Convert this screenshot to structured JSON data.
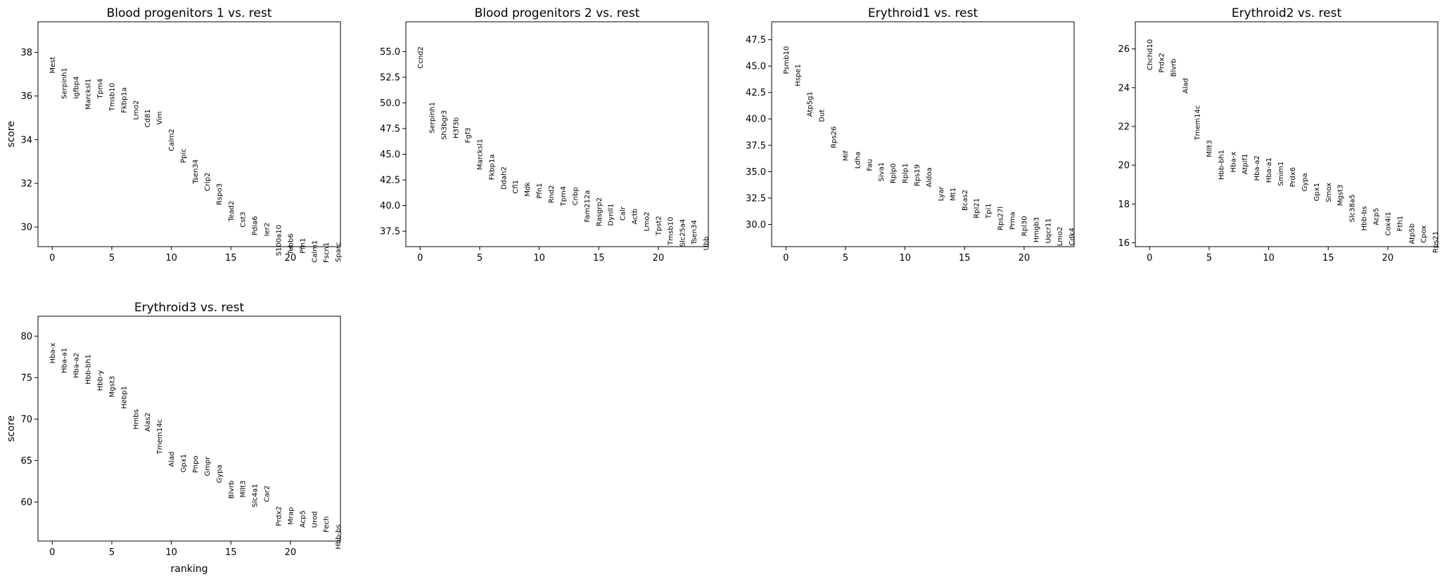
{
  "figure": {
    "xlabel": "ranking",
    "ylabel": "score"
  },
  "chart_data": [
    {
      "type": "scatter",
      "title": "Blood progenitors 1 vs. rest",
      "xlabel": "",
      "ylabel": "score",
      "xlim": [
        -1.2,
        24.2
      ],
      "ylim": [
        29.1,
        39.4
      ],
      "xticks": [
        0,
        5,
        10,
        15,
        20
      ],
      "yticks": [
        30,
        32,
        34,
        36,
        38
      ],
      "ytick_labels": [
        "30",
        "32",
        "34",
        "36",
        "38"
      ],
      "genes": [
        "Mest",
        "Serpinh1",
        "Igfbp4",
        "Marcksl1",
        "Tpm4",
        "Tmsb10",
        "Fkbp1a",
        "Lmo2",
        "Cd81",
        "Vim",
        "Calm2",
        "Ppic",
        "Tsen34",
        "Crip2",
        "Rspo3",
        "Tead2",
        "Cst3",
        "Pdia6",
        "Ier2",
        "S100a10",
        "Tubb6",
        "Pfn1",
        "Calm1",
        "Fscn1",
        "Sparc"
      ],
      "scores": [
        37.8,
        37.3,
        36.9,
        36.8,
        36.8,
        36.6,
        36.4,
        35.8,
        35.4,
        35.3,
        34.5,
        33.6,
        33.1,
        32.5,
        32.0,
        31.2,
        30.7,
        30.5,
        30.2,
        30.1,
        29.7,
        29.5,
        29.4,
        29.3,
        29.3
      ]
    },
    {
      "type": "scatter",
      "title": "Blood progenitors 2 vs. rest",
      "xlabel": "",
      "ylabel": "",
      "xlim": [
        -1.2,
        24.2
      ],
      "ylim": [
        36.0,
        57.9
      ],
      "xticks": [
        0,
        5,
        10,
        15,
        20
      ],
      "yticks": [
        37.5,
        40.0,
        42.5,
        45.0,
        47.5,
        50.0,
        52.5,
        55.0
      ],
      "ytick_labels": [
        "37.5",
        "40.0",
        "42.5",
        "45.0",
        "47.5",
        "50.0",
        "52.5",
        "55.0"
      ],
      "genes": [
        "Ccnd2",
        "Serpinh1",
        "Sh3bgr3",
        "H3f3b",
        "Fgf3",
        "Marcksl1",
        "Fkbp1a",
        "Ddah2",
        "Cfl1",
        "Mdk",
        "Pfn1",
        "Rnd2",
        "Tpm4",
        "Cnbp",
        "Fam212a",
        "Rasgrp2",
        "Dynll1",
        "Calr",
        "Actb",
        "Lmo2",
        "Tpst2",
        "Tmsb10",
        "Slc25a4",
        "Tsen34",
        "Ubb"
      ],
      "scores": [
        55.5,
        50.1,
        49.3,
        48.6,
        47.6,
        46.5,
        45.0,
        43.8,
        42.5,
        42.3,
        42.2,
        42.0,
        41.9,
        41.8,
        41.5,
        40.8,
        40.2,
        39.9,
        39.7,
        39.4,
        39.0,
        38.9,
        38.7,
        38.6,
        37.0
      ]
    },
    {
      "type": "scatter",
      "title": "Erythroid1 vs. rest",
      "xlabel": "",
      "ylabel": "",
      "xlim": [
        -1.2,
        24.2
      ],
      "ylim": [
        27.9,
        49.2
      ],
      "xticks": [
        0,
        5,
        10,
        15,
        20
      ],
      "yticks": [
        30.0,
        32.5,
        35.0,
        37.5,
        40.0,
        42.5,
        45.0,
        47.5
      ],
      "ytick_labels": [
        "30.0",
        "32.5",
        "35.0",
        "37.5",
        "40.0",
        "42.5",
        "45.0",
        "47.5"
      ],
      "genes": [
        "Psmb10",
        "Hspe1",
        "Atp5g1",
        "Dut",
        "Rps26",
        "Mif",
        "Ldha",
        "Fau",
        "Siva1",
        "Rplp0",
        "Rplp1",
        "Rps19",
        "Aldoa",
        "Lyar",
        "Mt1",
        "Bcas2",
        "Rpl21",
        "Tpi1",
        "Rps27l",
        "Prma",
        "Rpl30",
        "Hmgb3",
        "Uqcr11",
        "Lmo2",
        "Cdk4"
      ],
      "scores": [
        46.9,
        45.2,
        42.6,
        40.9,
        39.3,
        37.0,
        36.9,
        36.2,
        35.9,
        35.8,
        35.8,
        35.7,
        35.4,
        33.6,
        33.5,
        33.3,
        32.5,
        32.0,
        31.7,
        31.2,
        30.8,
        30.7,
        30.6,
        29.8,
        29.7
      ]
    },
    {
      "type": "scatter",
      "title": "Erythroid2 vs. rest",
      "xlabel": "",
      "ylabel": "",
      "xlim": [
        -1.2,
        24.2
      ],
      "ylim": [
        15.8,
        27.4
      ],
      "xticks": [
        0,
        5,
        10,
        15,
        20
      ],
      "yticks": [
        16,
        18,
        20,
        22,
        24,
        26
      ],
      "ytick_labels": [
        "16",
        "18",
        "20",
        "22",
        "24",
        "26"
      ],
      "genes": [
        "Chchd10",
        "Prdx2",
        "Blvrb",
        "Alad",
        "Tmem14c",
        "Mllt3",
        "Hbb-bh1",
        "Hba-x",
        "Atpif1",
        "Hba-a2",
        "Hba-a1",
        "Smim1",
        "Prdx6",
        "Gypa",
        "Gpx1",
        "Smox",
        "Mgst3",
        "Slc38a5",
        "Hbb-bs",
        "Acp5",
        "Cox4i1",
        "Fth1",
        "Atp5b",
        "Cpox",
        "Rps21"
      ],
      "scores": [
        26.5,
        25.8,
        25.5,
        24.5,
        23.1,
        21.3,
        20.8,
        20.7,
        20.6,
        20.5,
        20.4,
        20.2,
        19.9,
        19.6,
        19.1,
        19.1,
        19.0,
        18.5,
        17.9,
        17.8,
        17.6,
        17.4,
        17.0,
        16.9,
        16.6
      ]
    },
    {
      "type": "scatter",
      "title": "Erythroid3 vs. rest",
      "xlabel": "ranking",
      "ylabel": "score",
      "xlim": [
        -1.2,
        24.2
      ],
      "ylim": [
        55.3,
        82.4
      ],
      "xticks": [
        0,
        5,
        10,
        15,
        20
      ],
      "yticks": [
        60,
        65,
        70,
        75,
        80
      ],
      "ytick_labels": [
        "60",
        "65",
        "70",
        "75",
        "80"
      ],
      "genes": [
        "Hba-x",
        "Hba-a1",
        "Hba-a2",
        "Hbb-bh1",
        "Hbb-y",
        "Mgst3",
        "Hebp1",
        "Hmbs",
        "Alas2",
        "Tmem14c",
        "Alad",
        "Gpx1",
        "Pnpo",
        "Gmpr",
        "Gypa",
        "Blvrb",
        "Mllt3",
        "Slc4a1",
        "Car2",
        "Prdx2",
        "Mrap",
        "Acp5",
        "Urod",
        "Fech",
        "Hbb-bs"
      ],
      "scores": [
        79.2,
        78.6,
        78.0,
        77.8,
        75.9,
        75.2,
        74.0,
        71.2,
        70.8,
        70.0,
        66.1,
        65.8,
        65.6,
        65.5,
        64.5,
        62.6,
        62.6,
        62.2,
        62.0,
        59.5,
        59.4,
        59.0,
        58.9,
        58.3,
        57.3
      ]
    }
  ]
}
